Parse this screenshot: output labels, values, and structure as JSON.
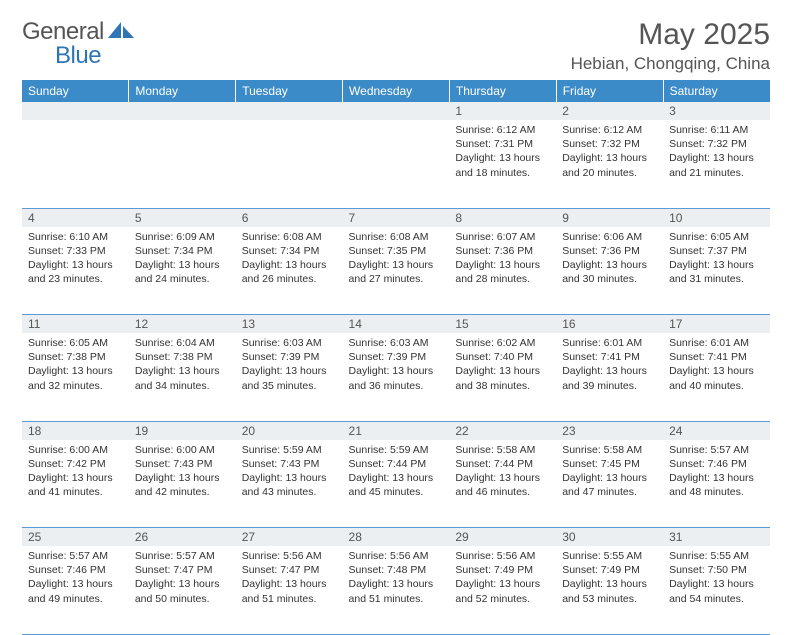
{
  "brand": {
    "part1": "General",
    "part2": "Blue"
  },
  "title": "May 2025",
  "location": "Hebian, Chongqing, China",
  "day_headers": [
    "Sunday",
    "Monday",
    "Tuesday",
    "Wednesday",
    "Thursday",
    "Friday",
    "Saturday"
  ],
  "colors": {
    "header_bg": "#3b8bc9",
    "header_fg": "#ffffff",
    "daynum_bg": "#eceff1",
    "rule": "#5b9bd5",
    "text": "#333333",
    "title_fg": "#555555",
    "logo_blue": "#2e75b6"
  },
  "weeks": [
    [
      null,
      null,
      null,
      null,
      {
        "n": "1",
        "sr": "6:12 AM",
        "ss": "7:31 PM",
        "dl": "13 hours and 18 minutes."
      },
      {
        "n": "2",
        "sr": "6:12 AM",
        "ss": "7:32 PM",
        "dl": "13 hours and 20 minutes."
      },
      {
        "n": "3",
        "sr": "6:11 AM",
        "ss": "7:32 PM",
        "dl": "13 hours and 21 minutes."
      }
    ],
    [
      {
        "n": "4",
        "sr": "6:10 AM",
        "ss": "7:33 PM",
        "dl": "13 hours and 23 minutes."
      },
      {
        "n": "5",
        "sr": "6:09 AM",
        "ss": "7:34 PM",
        "dl": "13 hours and 24 minutes."
      },
      {
        "n": "6",
        "sr": "6:08 AM",
        "ss": "7:34 PM",
        "dl": "13 hours and 26 minutes."
      },
      {
        "n": "7",
        "sr": "6:08 AM",
        "ss": "7:35 PM",
        "dl": "13 hours and 27 minutes."
      },
      {
        "n": "8",
        "sr": "6:07 AM",
        "ss": "7:36 PM",
        "dl": "13 hours and 28 minutes."
      },
      {
        "n": "9",
        "sr": "6:06 AM",
        "ss": "7:36 PM",
        "dl": "13 hours and 30 minutes."
      },
      {
        "n": "10",
        "sr": "6:05 AM",
        "ss": "7:37 PM",
        "dl": "13 hours and 31 minutes."
      }
    ],
    [
      {
        "n": "11",
        "sr": "6:05 AM",
        "ss": "7:38 PM",
        "dl": "13 hours and 32 minutes."
      },
      {
        "n": "12",
        "sr": "6:04 AM",
        "ss": "7:38 PM",
        "dl": "13 hours and 34 minutes."
      },
      {
        "n": "13",
        "sr": "6:03 AM",
        "ss": "7:39 PM",
        "dl": "13 hours and 35 minutes."
      },
      {
        "n": "14",
        "sr": "6:03 AM",
        "ss": "7:39 PM",
        "dl": "13 hours and 36 minutes."
      },
      {
        "n": "15",
        "sr": "6:02 AM",
        "ss": "7:40 PM",
        "dl": "13 hours and 38 minutes."
      },
      {
        "n": "16",
        "sr": "6:01 AM",
        "ss": "7:41 PM",
        "dl": "13 hours and 39 minutes."
      },
      {
        "n": "17",
        "sr": "6:01 AM",
        "ss": "7:41 PM",
        "dl": "13 hours and 40 minutes."
      }
    ],
    [
      {
        "n": "18",
        "sr": "6:00 AM",
        "ss": "7:42 PM",
        "dl": "13 hours and 41 minutes."
      },
      {
        "n": "19",
        "sr": "6:00 AM",
        "ss": "7:43 PM",
        "dl": "13 hours and 42 minutes."
      },
      {
        "n": "20",
        "sr": "5:59 AM",
        "ss": "7:43 PM",
        "dl": "13 hours and 43 minutes."
      },
      {
        "n": "21",
        "sr": "5:59 AM",
        "ss": "7:44 PM",
        "dl": "13 hours and 45 minutes."
      },
      {
        "n": "22",
        "sr": "5:58 AM",
        "ss": "7:44 PM",
        "dl": "13 hours and 46 minutes."
      },
      {
        "n": "23",
        "sr": "5:58 AM",
        "ss": "7:45 PM",
        "dl": "13 hours and 47 minutes."
      },
      {
        "n": "24",
        "sr": "5:57 AM",
        "ss": "7:46 PM",
        "dl": "13 hours and 48 minutes."
      }
    ],
    [
      {
        "n": "25",
        "sr": "5:57 AM",
        "ss": "7:46 PM",
        "dl": "13 hours and 49 minutes."
      },
      {
        "n": "26",
        "sr": "5:57 AM",
        "ss": "7:47 PM",
        "dl": "13 hours and 50 minutes."
      },
      {
        "n": "27",
        "sr": "5:56 AM",
        "ss": "7:47 PM",
        "dl": "13 hours and 51 minutes."
      },
      {
        "n": "28",
        "sr": "5:56 AM",
        "ss": "7:48 PM",
        "dl": "13 hours and 51 minutes."
      },
      {
        "n": "29",
        "sr": "5:56 AM",
        "ss": "7:49 PM",
        "dl": "13 hours and 52 minutes."
      },
      {
        "n": "30",
        "sr": "5:55 AM",
        "ss": "7:49 PM",
        "dl": "13 hours and 53 minutes."
      },
      {
        "n": "31",
        "sr": "5:55 AM",
        "ss": "7:50 PM",
        "dl": "13 hours and 54 minutes."
      }
    ]
  ],
  "labels": {
    "sunrise": "Sunrise:",
    "sunset": "Sunset:",
    "daylight": "Daylight:"
  }
}
